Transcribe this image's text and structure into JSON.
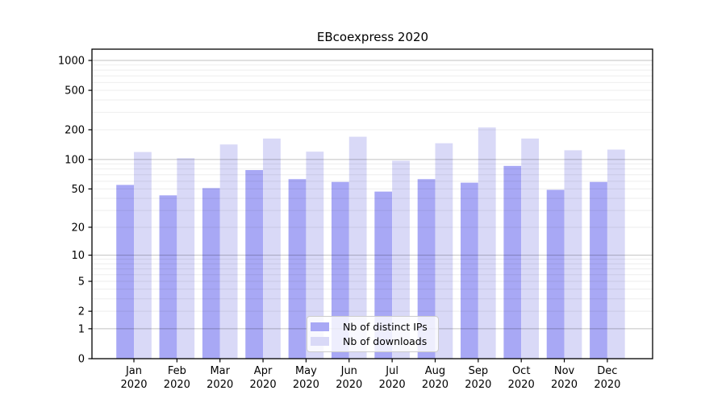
{
  "chart_data": {
    "type": "bar",
    "title": "EBcoexpress 2020",
    "categories": [
      "Jan",
      "Feb",
      "Mar",
      "Apr",
      "May",
      "Jun",
      "Jul",
      "Aug",
      "Sep",
      "Oct",
      "Nov",
      "Dec"
    ],
    "year_label": "2020",
    "series": [
      {
        "name": "Nb of distinct IPs",
        "color": "#a8a8f5",
        "values": [
          55,
          43,
          51,
          78,
          63,
          59,
          47,
          63,
          58,
          86,
          49,
          59
        ]
      },
      {
        "name": "Nb of downloads",
        "color": "#d9d9f7",
        "values": [
          119,
          103,
          142,
          163,
          120,
          170,
          97,
          146,
          211,
          163,
          124,
          126
        ]
      }
    ],
    "y_axis": {
      "scale": "log1p",
      "ticks": [
        0,
        1,
        2,
        5,
        10,
        20,
        50,
        100,
        200,
        500,
        1000
      ],
      "major_gridlines": [
        1,
        10,
        100,
        1000
      ],
      "grid": true
    },
    "legend": {
      "position": "inside-bottom-center"
    },
    "colors": {
      "axis": "#000000",
      "major_grid": "rgba(0,0,0,0.24)",
      "minor_grid": "rgba(0,0,0,0.07)",
      "legend_border": "#cccccc"
    }
  }
}
